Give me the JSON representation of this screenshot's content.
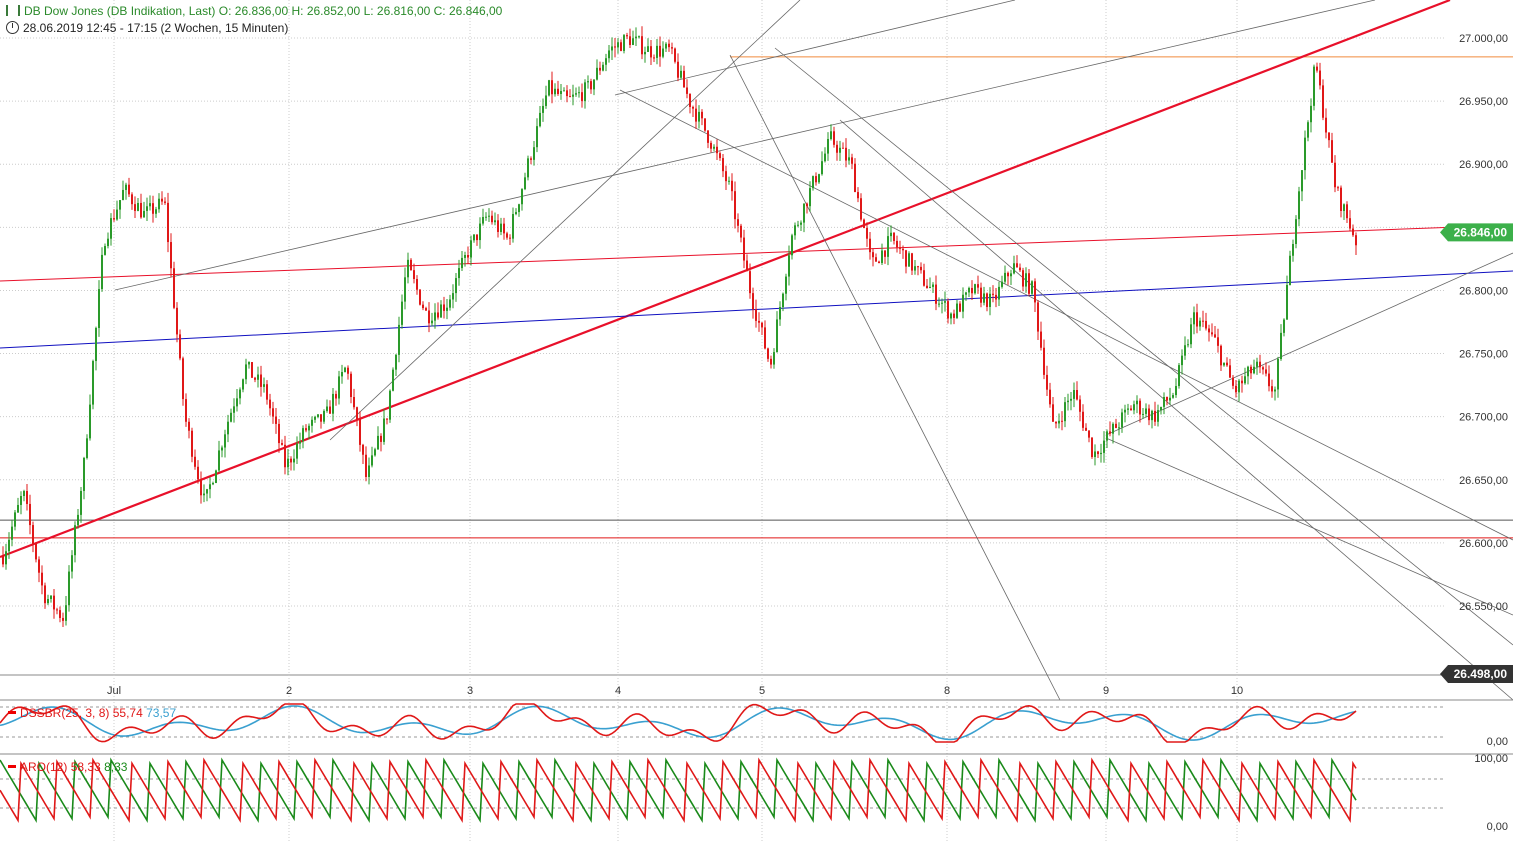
{
  "header": {
    "title": "DB Dow Jones (DB Indikation, Last)",
    "open_label": "O: 26.836,00",
    "high_label": "H: 26.852,00",
    "low_label": "L: 26.816,00",
    "close_label": "C: 26.846,00",
    "range": "28.06.2019 12:45 - 17:15",
    "period": "(2 Wochen, 15 Minuten)"
  },
  "colors": {
    "up": "#2a9a2a",
    "down": "#e01818",
    "trend_red": "#e8102a",
    "blue_line": "#1010c0",
    "orange_line": "#f08a3c",
    "badge_green": "#3cb04a",
    "badge_dark": "#333333",
    "dss_line": "#e01818",
    "dss_signal": "#3aa0d0",
    "aroon_up": "#1a8a1a",
    "aroon_down": "#e01818"
  },
  "price_axis": {
    "ticks": [
      "27.000,00",
      "26.950,00",
      "26.900,00",
      "26.850,00",
      "26.800,00",
      "26.750,00",
      "26.700,00",
      "26.650,00",
      "26.600,00",
      "26.550,00"
    ]
  },
  "badges": {
    "last_price": "26.846,00",
    "marker_price": "26.498,00"
  },
  "time_axis": {
    "labels": [
      "Jul",
      "2",
      "3",
      "4",
      "5",
      "8",
      "9",
      "10"
    ]
  },
  "dss": {
    "name": "DSSBR(25, 3, 8)",
    "value1": "55,74",
    "value2": "73,57",
    "axis_zero": "0,00"
  },
  "aroon": {
    "name": "ARO(12)",
    "value1": "58,33",
    "value2": "8,33",
    "axis_top": "100,00",
    "axis_zero": "0,00"
  },
  "chart_data": {
    "type": "candlestick",
    "title": "DB Dow Jones (DB Indikation, Last)",
    "timeframe": "15 Minuten",
    "x_sessions": [
      "28.06",
      "Jul 1",
      "2",
      "3",
      "4",
      "5",
      "8",
      "9",
      "10"
    ],
    "ylim": [
      26498,
      27030
    ],
    "last": 26846,
    "ohlc_last": {
      "open": 26836,
      "high": 26852,
      "low": 26816,
      "close": 26846
    },
    "path_anchors": [
      26590,
      26640,
      26560,
      26540,
      26660,
      26840,
      26880,
      26860,
      26870,
      26700,
      26630,
      26690,
      26740,
      26720,
      26660,
      26690,
      26700,
      26740,
      26650,
      26700,
      26820,
      26780,
      26790,
      26830,
      26860,
      26840,
      26900,
      26960,
      26950,
      26960,
      26990,
      27000,
      26990,
      26990,
      26950,
      26920,
      26880,
      26800,
      26740,
      26840,
      26880,
      26920,
      26900,
      26820,
      26840,
      26820,
      26800,
      26780,
      26800,
      26790,
      26820,
      26800,
      26690,
      26720,
      26670,
      26690,
      26710,
      26700,
      26720,
      26780,
      26760,
      26720,
      26740,
      26720,
      26860,
      26980,
      26880,
      26840
    ],
    "horizontal_levels": [
      26985,
      26618,
      26604
    ],
    "axis": "linear"
  }
}
